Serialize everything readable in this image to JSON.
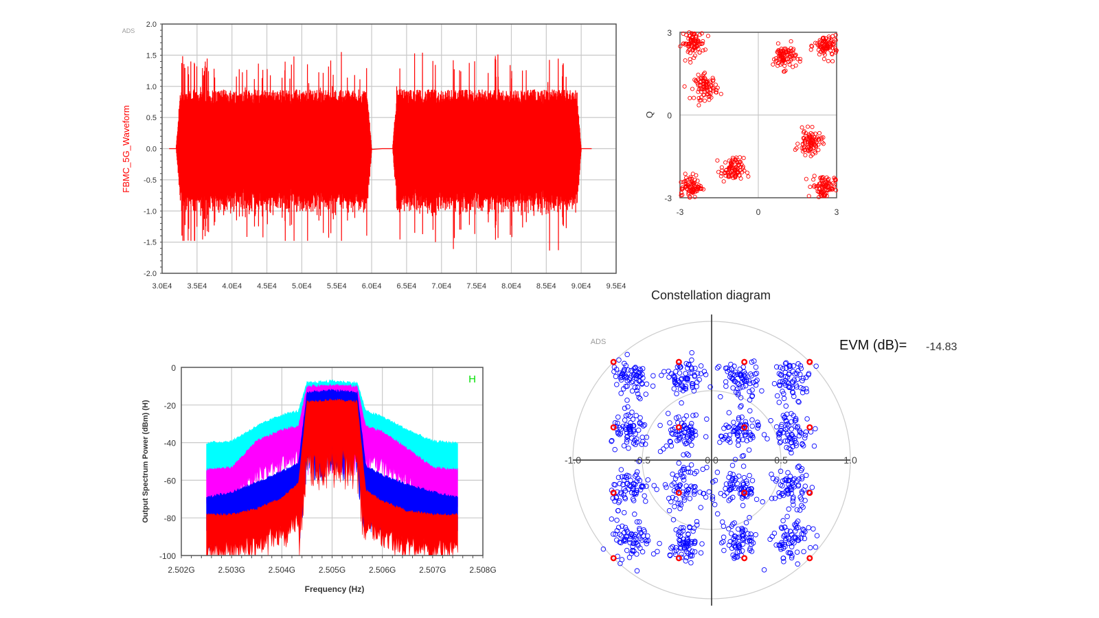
{
  "chart_data": [
    {
      "type": "line",
      "watermark": "ADS",
      "ylabel": "FBMC_5G_Waveform",
      "xlim": [
        30000,
        95000
      ],
      "ylim": [
        -2.0,
        2.0
      ],
      "x_tick_labels": [
        "3.0E4",
        "3.5E4",
        "4.0E4",
        "4.5E4",
        "5.0E4",
        "5.5E4",
        "6.0E4",
        "6.5E4",
        "7.0E4",
        "7.5E4",
        "8.0E4",
        "8.5E4",
        "9.0E4",
        "9.5E4"
      ],
      "y_tick_labels": [
        "2.0",
        "1.5",
        "1.0",
        "0.5",
        "0.0",
        "-0.5",
        "-1.0",
        "-1.5",
        "-2.0"
      ],
      "grid": true,
      "color": "#ff0000",
      "bursts": [
        {
          "x_start": 32000,
          "x_end": 60000,
          "typical_amplitude": 0.95,
          "peak_max": 1.62,
          "peak_min": -1.48
        },
        {
          "x_start": 63000,
          "x_end": 90000,
          "typical_amplitude": 0.95,
          "peak_max": 1.6,
          "peak_min": -1.7
        }
      ]
    },
    {
      "type": "scatter",
      "ylabel": "Q",
      "xlim": [
        -3,
        3
      ],
      "ylim": [
        -3,
        3
      ],
      "x_tick_labels": [
        "-3",
        "0",
        "3"
      ],
      "y_tick_labels": [
        "3",
        "0",
        "-3"
      ],
      "marker": "open-circle",
      "color": "#ff0000",
      "clusters": [
        {
          "x": -2.5,
          "y": 2.6
        },
        {
          "x": -2.0,
          "y": 1.0
        },
        {
          "x": 1.0,
          "y": 2.1
        },
        {
          "x": 2.6,
          "y": 2.5
        },
        {
          "x": 2.0,
          "y": -1.0
        },
        {
          "x": 2.5,
          "y": -2.6
        },
        {
          "x": -1.0,
          "y": -2.0
        },
        {
          "x": -2.6,
          "y": -2.6
        }
      ]
    },
    {
      "type": "area",
      "indicator": "H",
      "xlabel": "Frequency (Hz)",
      "ylabel": "Output Spectrum Power (dBm)  (H)",
      "xlim": [
        2.502,
        2.508
      ],
      "ylim": [
        -100,
        0
      ],
      "x_tick_labels": [
        "2.502G",
        "2.503G",
        "2.504G",
        "2.505G",
        "2.506G",
        "2.507G",
        "2.508G"
      ],
      "y_tick_labels": [
        "0",
        "-20",
        "-40",
        "-60",
        "-80",
        "-100"
      ],
      "grid": true,
      "x_ghz": [
        2.5025,
        2.503,
        2.5035,
        2.504,
        2.50433,
        2.5045,
        2.505,
        2.5055,
        2.50567,
        2.506,
        2.5065,
        2.507,
        2.5075
      ],
      "series": [
        {
          "color": "#00ffff",
          "values": [
            -41,
            -40,
            -32,
            -26,
            -24,
            -9,
            -8,
            -9,
            -24,
            -27,
            -34,
            -40,
            -41
          ]
        },
        {
          "color": "#ff00ff",
          "values": [
            -55,
            -54,
            -40,
            -34,
            -32,
            -11,
            -10,
            -11,
            -32,
            -35,
            -44,
            -54,
            -55
          ]
        },
        {
          "color": "#0000ff",
          "values": [
            -70,
            -67,
            -62,
            -56,
            -52,
            -14,
            -13,
            -14,
            -53,
            -58,
            -63,
            -67,
            -70
          ]
        },
        {
          "color": "#ff0000",
          "values": [
            -79,
            -79,
            -76,
            -70,
            -62,
            -19,
            -18,
            -19,
            -66,
            -72,
            -77,
            -79,
            -79
          ]
        }
      ]
    },
    {
      "type": "scatter",
      "title": "Constellation diagram",
      "watermark": "ADS",
      "polar_grid": true,
      "x_tick_labels": [
        "-1.0",
        "-0.5",
        "0.0",
        "0.5",
        "1.0"
      ],
      "ideal_color": "#ff0000",
      "measured_color": "#0000ff",
      "ideal_levels": [
        -0.707,
        -0.236,
        0.236,
        0.707
      ],
      "measured_levels": [
        -0.58,
        -0.2,
        0.2,
        0.58
      ],
      "evm_label": "EVM (dB)=",
      "evm_value": "-14.83"
    }
  ]
}
